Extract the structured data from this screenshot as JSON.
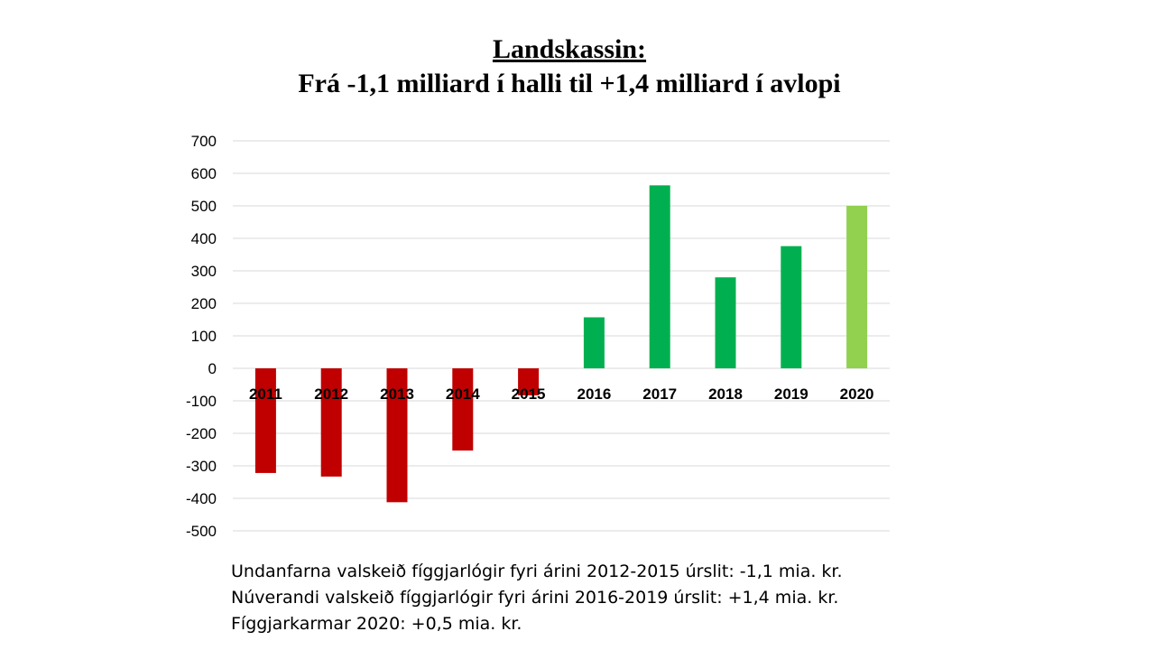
{
  "title": "Landskassin:",
  "subtitle": "Frá -1,1 milliard í halli til +1,4 milliard í avlopi",
  "notes": [
    "Undanfarna valskeið fíggjarlógir fyri árini 2012-2015 úrslit: -1,1 mia. kr.",
    "Núverandi valskeið fíggjarlógir fyri árini 2016-2019 úrslit: +1,4 mia. kr.",
    "Fíggjarkarmar 2020: +0,5 mia. kr."
  ],
  "chart_data": {
    "type": "bar",
    "categories": [
      "2011",
      "2012",
      "2013",
      "2014",
      "2015",
      "2016",
      "2017",
      "2018",
      "2019",
      "2020"
    ],
    "values": [
      -322,
      -333,
      -412,
      -253,
      -83,
      157,
      563,
      280,
      376,
      500
    ],
    "colors": [
      "#c00000",
      "#c00000",
      "#c00000",
      "#c00000",
      "#c00000",
      "#00b050",
      "#00b050",
      "#00b050",
      "#00b050",
      "#92d050"
    ],
    "ylim": [
      -500,
      700
    ],
    "yticks": [
      700,
      600,
      500,
      400,
      300,
      200,
      100,
      0,
      -100,
      -200,
      -300,
      -400,
      -500
    ],
    "grid": true,
    "legend": "none"
  }
}
